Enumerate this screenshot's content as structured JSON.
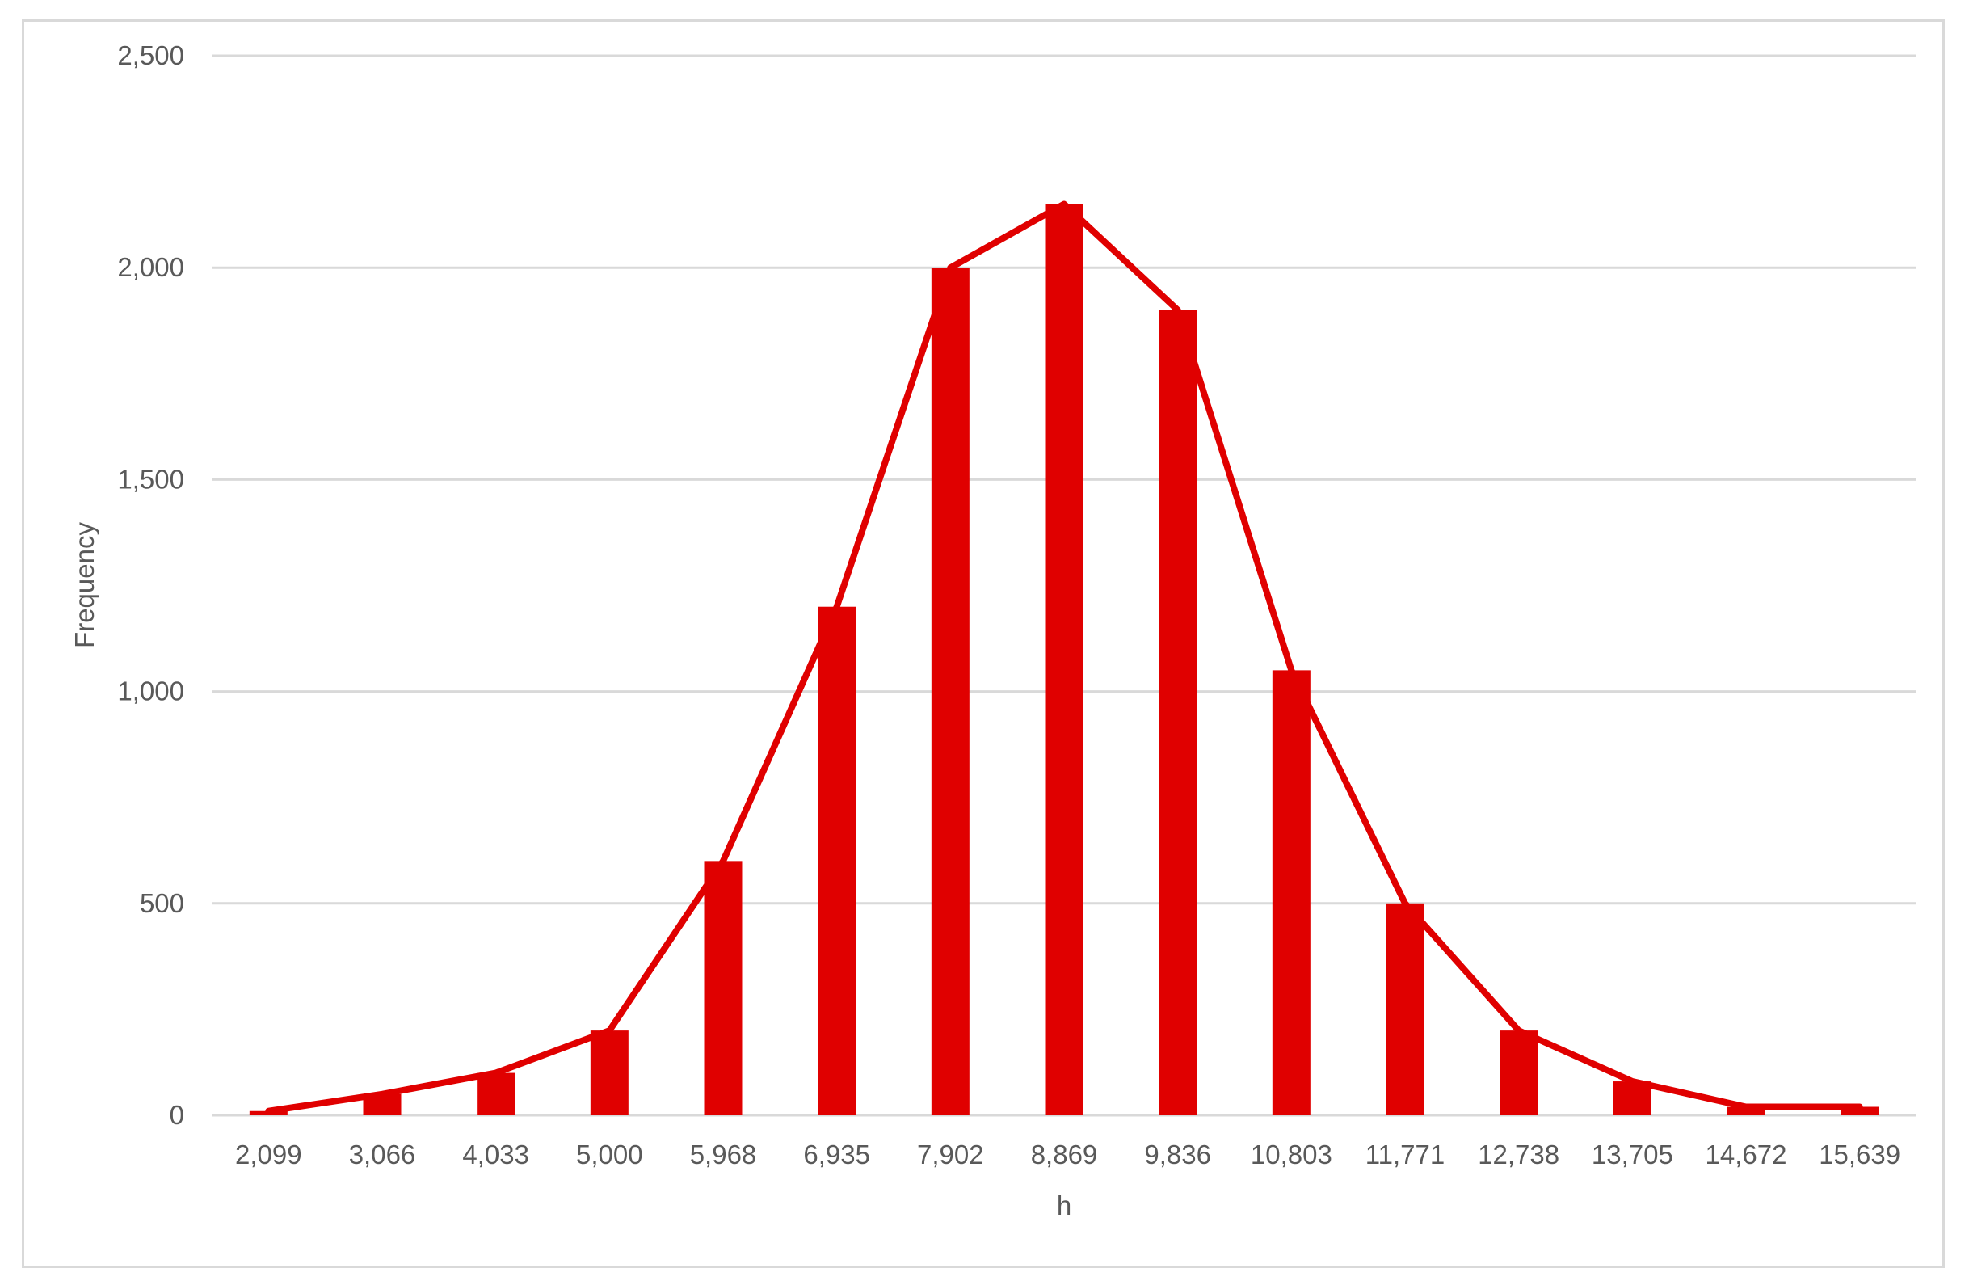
{
  "chart_data": {
    "type": "bar",
    "title": "",
    "xlabel": "h",
    "ylabel": "Frequency",
    "categories": [
      "2,099",
      "3,066",
      "4,033",
      "5,000",
      "5,968",
      "6,935",
      "7,902",
      "8,869",
      "9,836",
      "10,803",
      "11,771",
      "12,738",
      "13,705",
      "14,672",
      "15,639"
    ],
    "series": [
      {
        "type": "bar",
        "values": [
          10,
          50,
          100,
          200,
          600,
          1200,
          2000,
          2150,
          1900,
          1050,
          500,
          200,
          80,
          20,
          20
        ]
      },
      {
        "type": "line",
        "values": [
          10,
          50,
          100,
          200,
          600,
          1200,
          2000,
          2150,
          1900,
          1050,
          500,
          200,
          80,
          20,
          20
        ]
      }
    ],
    "ylim": [
      0,
      2500
    ],
    "yticks": [
      0,
      500,
      1000,
      1500,
      2000,
      2500
    ],
    "ytick_labels": [
      "0",
      "500",
      "1,000",
      "1,500",
      "2,000",
      "2,500"
    ],
    "grid": true,
    "legend": "none",
    "colors": {
      "bar": "#e00000",
      "line": "#e00000",
      "grid": "#d9d9d9",
      "text": "#595959"
    }
  }
}
